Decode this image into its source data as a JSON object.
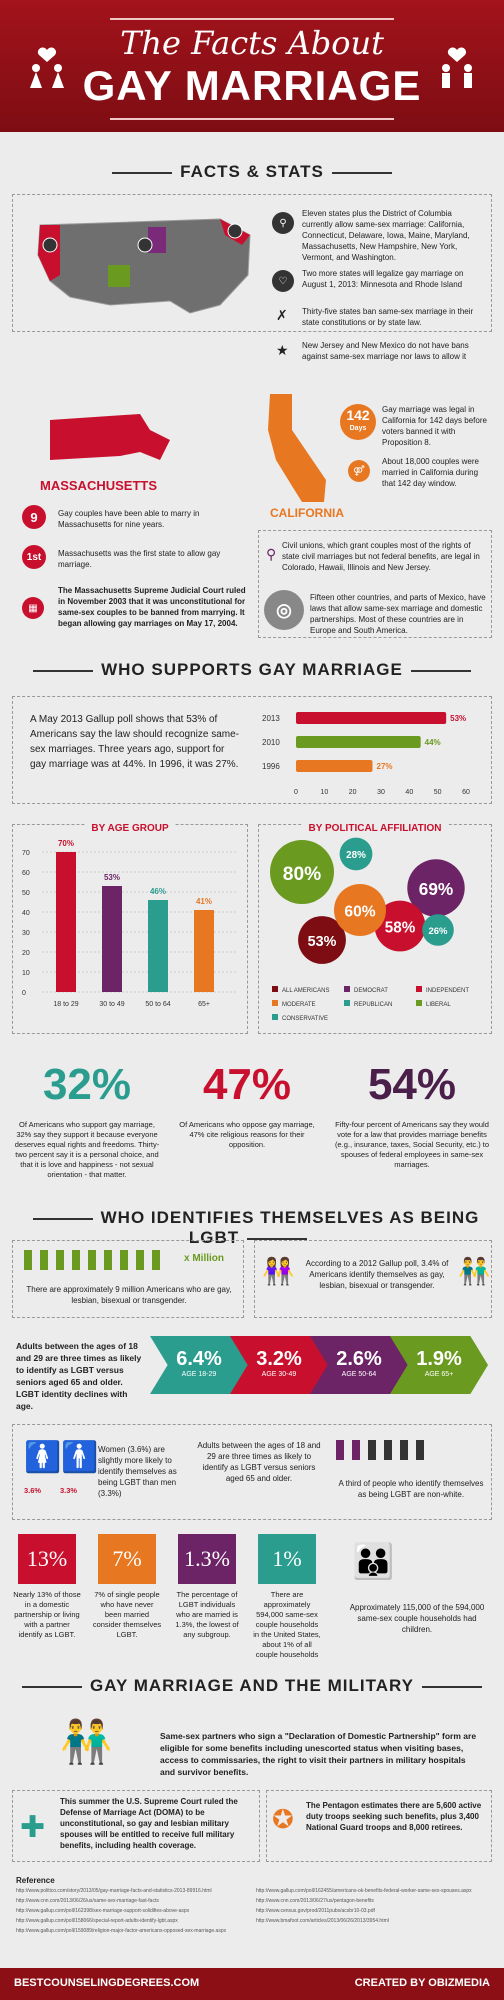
{
  "header": {
    "title_small": "The Facts About",
    "title_big": "GAY MARRIAGE"
  },
  "sections": {
    "facts": "FACTS & STATS",
    "supports": "WHO SUPPORTS GAY MARRIAGE",
    "lgbt": "WHO IDENTIFIES THEMSELVES AS BEING LGBT",
    "military": "GAY MARRIAGE AND THE MILITARY"
  },
  "facts": {
    "f1": "Eleven states plus the District of Columbia currently allow same-sex marriage: California, Connecticut, Delaware, Iowa, Maine, Maryland, Massachusetts, New Hampshire, New York, Vermont, and Washington.",
    "f2": "Two more states will legalize gay marriage on August 1, 2013: Minnesota and Rhode Island",
    "f3": "Thirty-five states ban same-sex marriage in their state constitutions or by state law.",
    "f4": "New Jersey and New Mexico do not have bans against same-sex marriage nor laws to allow it"
  },
  "mass": {
    "label": "MASSACHUSETTS",
    "n9": "9",
    "t9": "Gay couples have been able to marry in Massachusetts for nine years.",
    "n1": "1st",
    "t1": "Massachusetts was the first state to allow gay marriage.",
    "t3": "The Massachusetts Supreme Judicial Court ruled in November 2003 that it was unconstitutional for same-sex couples to be banned from marrying. It began allowing gay marriages on May 17, 2004."
  },
  "cal": {
    "label": "CALIFORNIA",
    "days": "142",
    "days_label": "Days",
    "t1": "Gay marriage was legal in California for 142 days before voters banned it with Proposition 8.",
    "t2": "About 18,000 couples were married in California during that 142 day window."
  },
  "civil": "Civil unions, which grant couples most of the rights of state civil marriages but not federal benefits, are legal in Colorado, Hawaii, Illinois and New Jersey.",
  "world": "Fifteen other countries, and parts of Mexico, have laws that allow same-sex marriage and domestic partnerships. Most of these countries are in Europe and South America.",
  "gallup": "A May 2013 Gallup poll shows that 53% of Americans say the law should recognize same-sex marriages. Three years ago, support for gay marriage was at 44%. In 1996, it was 27%.",
  "chart_data": [
    {
      "type": "bar",
      "categories": [
        "2013",
        "2010",
        "1996"
      ],
      "values": [
        53,
        44,
        27
      ],
      "xlim": [
        0,
        60
      ],
      "xticks": [
        "0",
        "10",
        "20",
        "30",
        "40",
        "50",
        "60"
      ]
    },
    {
      "type": "bar",
      "title": "BY AGE GROUP",
      "categories": [
        "18 to 29",
        "30 to 49",
        "50 to 64",
        "65+"
      ],
      "values": [
        70,
        53,
        46,
        41
      ],
      "ylim": [
        0,
        70
      ],
      "yticks": [
        "0",
        "10",
        "20",
        "30",
        "40",
        "50",
        "60",
        "70"
      ]
    },
    {
      "type": "bubble",
      "title": "BY POLITICAL AFFILIATION",
      "series": [
        {
          "name": "ALL AMERICANS",
          "value": 53
        },
        {
          "name": "DEMOCRAT",
          "value": 69
        },
        {
          "name": "INDEPENDENT",
          "value": 58
        },
        {
          "name": "MODERATE",
          "value": 60
        },
        {
          "name": "REPUBLICAN",
          "value": 26
        },
        {
          "name": "LIBERAL",
          "value": 80
        },
        {
          "name": "CONSERVATIVE",
          "value": 28
        }
      ]
    }
  ],
  "big3": [
    {
      "v": "32%",
      "t": "Of Americans who support gay marriage, 32% say they support it because everyone deserves equal rights and freedoms. Thirty-two percent say it is a personal choice, and that it is love and happiness - not sexual orientation - that matter."
    },
    {
      "v": "47%",
      "t": "Of Americans who oppose gay marriage, 47% cite religious reasons for their opposition."
    },
    {
      "v": "54%",
      "t": "Fifty-four percent of Americans say they would vote for a law that provides marriage benefits (e.g., insurance, taxes, Social Security, etc.) to spouses of federal employees in same-sex marriages."
    }
  ],
  "lgbt": {
    "million": "x Million",
    "t9": "There are approximately 9 million Americans who are gay, lesbian, bisexual or transgender.",
    "t34": "According to a 2012 Gallup poll, 3.4% of Americans identify themselves as gay, lesbian, bisexual or transgender.",
    "age_text": "Adults between the ages of 18 and 29 are three times as likely to identify as LGBT versus seniors aged 65 and older. LGBT identity declines with age.",
    "chev": [
      {
        "p": "6.4%",
        "a": "AGE 18-29"
      },
      {
        "p": "3.2%",
        "a": "AGE 30-49"
      },
      {
        "p": "2.6%",
        "a": "AGE 50-64"
      },
      {
        "p": "1.9%",
        "a": "AGE 65+"
      }
    ],
    "women": "Women (3.6%) are slightly more likely to identify themselves as being LGBT than men (3.3%)",
    "w": "3.6%",
    "m": "3.3%",
    "three": "Adults between the ages of 18 and 29 are three times as likely to identify as LGBT versus seniors aged 65 and older.",
    "nonwhite": "A third of people who identify themselves as being LGBT are non-white.",
    "sq": [
      {
        "v": "13%",
        "t": "Nearly 13% of those in a domestic partnership or living with a partner identify as LGBT."
      },
      {
        "v": "7%",
        "t": "7% of single people who have never been married consider themselves LGBT."
      },
      {
        "v": "1.3%",
        "t": "The percentage of LGBT individuals who are married is 1.3%, the lowest of any subgroup."
      },
      {
        "v": "1%",
        "t": "There are approximately 594,000 same-sex couple households in the United States, about 1% of all couple households"
      }
    ],
    "kids": "Approximately 115,000 of the 594,000 same-sex couple households had children."
  },
  "military": {
    "t1": "Same-sex partners who sign a \"Declaration of Domestic Partnership\" form are eligible for some benefits including unescorted status when visiting bases, access to commissaries, the right to visit their partners in military hospitals and survivor benefits.",
    "t2": "This summer the U.S. Supreme Court ruled the Defense of Marriage Act (DOMA) to be unconstitutional, so gay and lesbian military spouses will be entitled to receive full military benefits, including health coverage.",
    "t3": "The Pentagon estimates there are 5,600 active duty troops seeking such benefits, plus 3,400 National Guard troops and 8,000 retirees."
  },
  "reference": {
    "title": "Reference",
    "links": [
      "http://www.politico.com/story/2013/05/gay-marriage-facts-and-statistics-2013-89916.html",
      "http://www.cnn.com/2013/06/26/us/same-sex-marriage-fast-facts",
      "http://www.gallup.com/poll/162398/sex-marriage-support-solidifies-above-aspx",
      "http://www.gallup.com/poll/158066/special-report-adults-identify-lgbt.aspx",
      "http://www.gallup.com/poll/159089/religion-major-factor-americans-opposed-sex-marriage.aspx",
      "http://www.gallup.com/poll/162455/americans-ok-benefits-federal-worker-same-sex-spouses.aspx",
      "http://www.cnn.com/2013/06/27/us/pentagon-benefits",
      "http://www.census.gov/prod/2011pubs/acsbr10-03.pdf",
      "http://www.bmafoot.com/articles/2013/06/26/2013/3954.html"
    ]
  },
  "footer": {
    "left": "BESTCOUNSELINGDEGREES.COM",
    "right": "CREATED BY OBIZMEDIA"
  }
}
